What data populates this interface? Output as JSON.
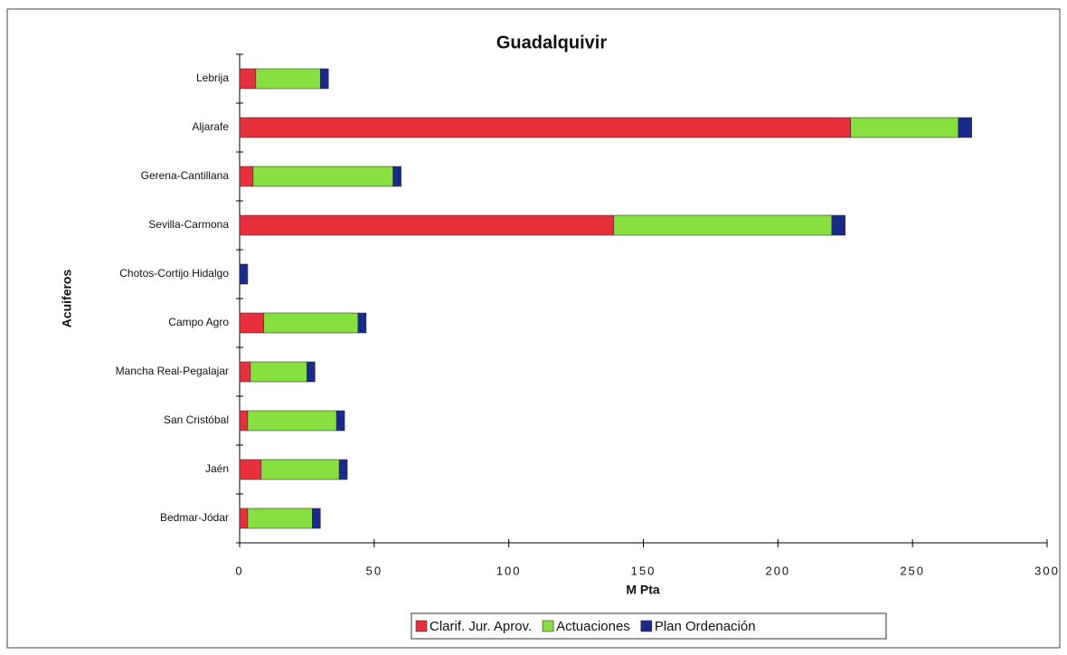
{
  "chart_data": {
    "type": "stacked_barh",
    "title": "Guadalquivir",
    "x_label": "M Pta",
    "y_label": "Acuiferos",
    "categories": [
      "Lebrija",
      "Aljarafe",
      "Gerena-Cantillana",
      "Sevilla-Carmona",
      "Chotos-Cortijo Hidalgo",
      "Campo Agro",
      "Mancha Real-Pegalajar",
      "San Cristóbal",
      "Jaén",
      "Bedmar-Jódar"
    ],
    "series": [
      {
        "name": "Clarif. Jur. Aprov.",
        "color": "#e8303c",
        "values": [
          6,
          227,
          5,
          139,
          0,
          9,
          4,
          3,
          8,
          3
        ]
      },
      {
        "name": "Actuaciones",
        "color": "#88e040",
        "values": [
          24,
          40,
          52,
          81,
          0,
          35,
          21,
          33,
          29,
          24
        ]
      },
      {
        "name": "Plan Ordenación",
        "color": "#1a2a8a",
        "values": [
          3,
          5,
          3,
          5,
          3,
          3,
          3,
          3,
          3,
          3
        ]
      }
    ],
    "xlim": [
      0,
      300
    ],
    "xticks": [
      0,
      50,
      100,
      150,
      200,
      250,
      300
    ],
    "legend": "bottom"
  }
}
